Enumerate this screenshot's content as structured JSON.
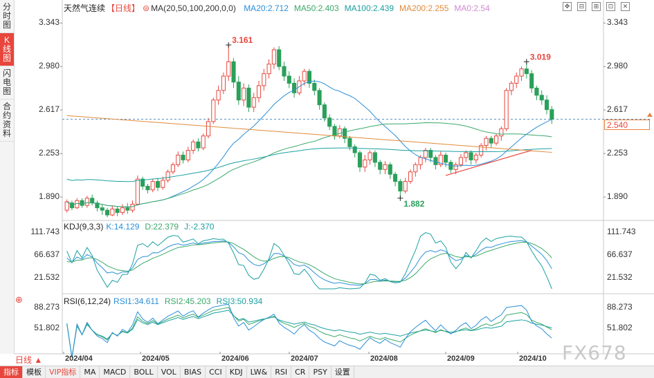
{
  "sidebar": {
    "tabs": [
      {
        "label": "分时图",
        "active": false
      },
      {
        "label": "K线图",
        "active": true
      },
      {
        "label": "闪电图",
        "active": false
      },
      {
        "label": "合约资料",
        "active": false
      }
    ]
  },
  "header": {
    "title": "天然气连续",
    "period": "【日线】",
    "ma_label": "MA(20,50,100,200,0,0)",
    "ma_values": [
      {
        "text": "MA20:2.712",
        "color": "#2a8fd8"
      },
      {
        "text": "MA50:2.403",
        "color": "#3aa86a"
      },
      {
        "text": "MA100:2.439",
        "color": "#1aa0a0"
      },
      {
        "text": "MA200:2.255",
        "color": "#e08a3a"
      },
      {
        "text": "MA0:2.54",
        "color": "#d08ad0"
      }
    ]
  },
  "toolbar_icons": [
    "expand-icon",
    "restore-icon",
    "split-icon",
    "fullscreen-icon",
    "close-icon"
  ],
  "price_axis": {
    "ticks": [
      "3.343",
      "2.980",
      "2.617",
      "2.253",
      "1.890"
    ],
    "current_price": "2.540",
    "high_label": "3.161",
    "high2_label": "3.019",
    "low_label": "1.882"
  },
  "kdj": {
    "title": "KDJ(9,3,3)",
    "values": [
      {
        "text": "K:14.129",
        "color": "#2a8fd8"
      },
      {
        "text": "D:22.379",
        "color": "#3aa86a"
      },
      {
        "text": "J:-2.370",
        "color": "#1aa0a0"
      }
    ],
    "ticks": [
      "111.743",
      "66.637",
      "21.532"
    ]
  },
  "rsi": {
    "title": "RSI(6,12,24)",
    "values": [
      {
        "text": "RSI1:34.611",
        "color": "#2a8fd8"
      },
      {
        "text": "RSI2:45.203",
        "color": "#3aa86a"
      },
      {
        "text": "RSI3:50.934",
        "color": "#1aa0a0"
      }
    ],
    "ticks": [
      "88.273",
      "51.802"
    ]
  },
  "x_axis": [
    "2024/04",
    "2024/05",
    "2024/06",
    "2024/07",
    "2024/08",
    "2024/09",
    "2024/10"
  ],
  "period_selector": "日线 ▲",
  "bottom_tabs": [
    "指标",
    "模板",
    "VIP指标",
    "MA",
    "MACD",
    "BOLL",
    "VOL",
    "BIAS",
    "CCI",
    "KDJ",
    "LW&",
    "RSI",
    "CR",
    "PSY",
    "设置"
  ],
  "watermark": "FX678",
  "chart_data": {
    "type": "candlestick",
    "title": "天然气连续",
    "y_ticks": [
      3.343,
      2.98,
      2.617,
      2.253,
      1.89
    ],
    "ylim": [
      1.7,
      3.42
    ],
    "candles": [
      [
        1.78,
        1.85,
        1.76,
        1.87
      ],
      [
        1.84,
        1.8,
        1.78,
        1.86
      ],
      [
        1.8,
        1.86,
        1.79,
        1.88
      ],
      [
        1.86,
        1.82,
        1.8,
        1.88
      ],
      [
        1.82,
        1.88,
        1.8,
        1.9
      ],
      [
        1.88,
        1.84,
        1.82,
        1.91
      ],
      [
        1.84,
        1.8,
        1.77,
        1.86
      ],
      [
        1.8,
        1.78,
        1.74,
        1.83
      ],
      [
        1.78,
        1.74,
        1.72,
        1.8
      ],
      [
        1.74,
        1.79,
        1.73,
        1.82
      ],
      [
        1.79,
        1.76,
        1.73,
        1.81
      ],
      [
        1.76,
        1.8,
        1.74,
        1.83
      ],
      [
        1.8,
        1.78,
        1.75,
        1.84
      ],
      [
        1.78,
        1.83,
        1.76,
        1.86
      ],
      [
        1.83,
        2.04,
        1.82,
        2.07
      ],
      [
        2.04,
        1.98,
        1.95,
        2.06
      ],
      [
        1.98,
        1.95,
        1.92,
        2.0
      ],
      [
        1.95,
        2.02,
        1.93,
        2.04
      ],
      [
        2.02,
        1.97,
        1.94,
        2.05
      ],
      [
        1.97,
        2.03,
        1.95,
        2.06
      ],
      [
        2.03,
        2.1,
        2.01,
        2.12
      ],
      [
        2.1,
        2.16,
        2.08,
        2.18
      ],
      [
        2.16,
        2.24,
        2.14,
        2.27
      ],
      [
        2.24,
        2.2,
        2.17,
        2.27
      ],
      [
        2.2,
        2.28,
        2.18,
        2.31
      ],
      [
        2.28,
        2.35,
        2.25,
        2.37
      ],
      [
        2.35,
        2.3,
        2.27,
        2.38
      ],
      [
        2.3,
        2.4,
        2.28,
        2.42
      ],
      [
        2.4,
        2.52,
        2.38,
        2.55
      ],
      [
        2.52,
        2.7,
        2.5,
        2.72
      ],
      [
        2.7,
        2.78,
        2.66,
        2.82
      ],
      [
        2.78,
        2.9,
        2.75,
        2.93
      ],
      [
        2.9,
        3.02,
        2.86,
        3.16
      ],
      [
        3.02,
        2.85,
        2.8,
        3.05
      ],
      [
        2.85,
        2.7,
        2.66,
        2.9
      ],
      [
        2.7,
        2.8,
        2.65,
        2.84
      ],
      [
        2.8,
        2.64,
        2.6,
        2.83
      ],
      [
        2.64,
        2.72,
        2.6,
        2.76
      ],
      [
        2.72,
        2.82,
        2.68,
        2.86
      ],
      [
        2.82,
        2.92,
        2.78,
        2.96
      ],
      [
        2.92,
        3.0,
        2.88,
        3.04
      ],
      [
        3.0,
        3.12,
        2.96,
        3.14
      ],
      [
        3.12,
        2.98,
        2.95,
        3.15
      ],
      [
        2.98,
        2.9,
        2.86,
        3.02
      ],
      [
        2.9,
        2.84,
        2.8,
        2.94
      ],
      [
        2.84,
        2.76,
        2.72,
        2.88
      ],
      [
        2.76,
        2.86,
        2.74,
        2.9
      ],
      [
        2.86,
        2.94,
        2.82,
        2.96
      ],
      [
        2.94,
        2.84,
        2.8,
        2.96
      ],
      [
        2.84,
        2.78,
        2.74,
        2.87
      ],
      [
        2.78,
        2.66,
        2.62,
        2.8
      ],
      [
        2.66,
        2.55,
        2.52,
        2.68
      ],
      [
        2.55,
        2.48,
        2.45,
        2.58
      ],
      [
        2.48,
        2.4,
        2.37,
        2.5
      ],
      [
        2.4,
        2.46,
        2.38,
        2.49
      ],
      [
        2.46,
        2.38,
        2.34,
        2.48
      ],
      [
        2.38,
        2.31,
        2.28,
        2.4
      ],
      [
        2.31,
        2.26,
        2.22,
        2.33
      ],
      [
        2.26,
        2.14,
        2.1,
        2.28
      ],
      [
        2.14,
        2.2,
        2.1,
        2.24
      ],
      [
        2.2,
        2.26,
        2.16,
        2.28
      ],
      [
        2.26,
        2.18,
        2.14,
        2.28
      ],
      [
        2.18,
        2.12,
        2.08,
        2.2
      ],
      [
        2.12,
        2.16,
        2.08,
        2.19
      ],
      [
        2.16,
        2.08,
        2.04,
        2.18
      ],
      [
        2.08,
        2.02,
        1.98,
        2.1
      ],
      [
        2.02,
        1.94,
        1.88,
        2.04
      ],
      [
        1.94,
        2.02,
        1.92,
        2.05
      ],
      [
        2.02,
        2.1,
        2.0,
        2.12
      ],
      [
        2.1,
        2.16,
        2.06,
        2.18
      ],
      [
        2.16,
        2.22,
        2.12,
        2.24
      ],
      [
        2.22,
        2.28,
        2.18,
        2.3
      ],
      [
        2.28,
        2.22,
        2.18,
        2.3
      ],
      [
        2.22,
        2.16,
        2.12,
        2.24
      ],
      [
        2.16,
        2.24,
        2.14,
        2.27
      ],
      [
        2.24,
        2.18,
        2.14,
        2.26
      ],
      [
        2.18,
        2.12,
        2.09,
        2.2
      ],
      [
        2.12,
        2.16,
        2.08,
        2.18
      ],
      [
        2.16,
        2.22,
        2.14,
        2.25
      ],
      [
        2.22,
        2.26,
        2.18,
        2.28
      ],
      [
        2.26,
        2.2,
        2.16,
        2.28
      ],
      [
        2.2,
        2.24,
        2.17,
        2.26
      ],
      [
        2.24,
        2.32,
        2.22,
        2.34
      ],
      [
        2.32,
        2.38,
        2.28,
        2.4
      ],
      [
        2.38,
        2.34,
        2.3,
        2.4
      ],
      [
        2.34,
        2.4,
        2.32,
        2.42
      ],
      [
        2.4,
        2.46,
        2.36,
        2.48
      ],
      [
        2.46,
        2.78,
        2.44,
        2.8
      ],
      [
        2.78,
        2.84,
        2.74,
        2.86
      ],
      [
        2.84,
        2.9,
        2.8,
        2.93
      ],
      [
        2.9,
        2.96,
        2.86,
        2.98
      ],
      [
        2.96,
        2.92,
        2.88,
        3.02
      ],
      [
        2.92,
        2.8,
        2.76,
        2.95
      ],
      [
        2.8,
        2.74,
        2.7,
        2.82
      ],
      [
        2.74,
        2.7,
        2.66,
        2.78
      ],
      [
        2.7,
        2.62,
        2.58,
        2.74
      ],
      [
        2.62,
        2.54,
        2.5,
        2.65
      ]
    ],
    "annotations": [
      {
        "text": "3.161",
        "type": "high"
      },
      {
        "text": "3.019",
        "type": "high"
      },
      {
        "text": "1.882",
        "type": "low"
      }
    ]
  }
}
